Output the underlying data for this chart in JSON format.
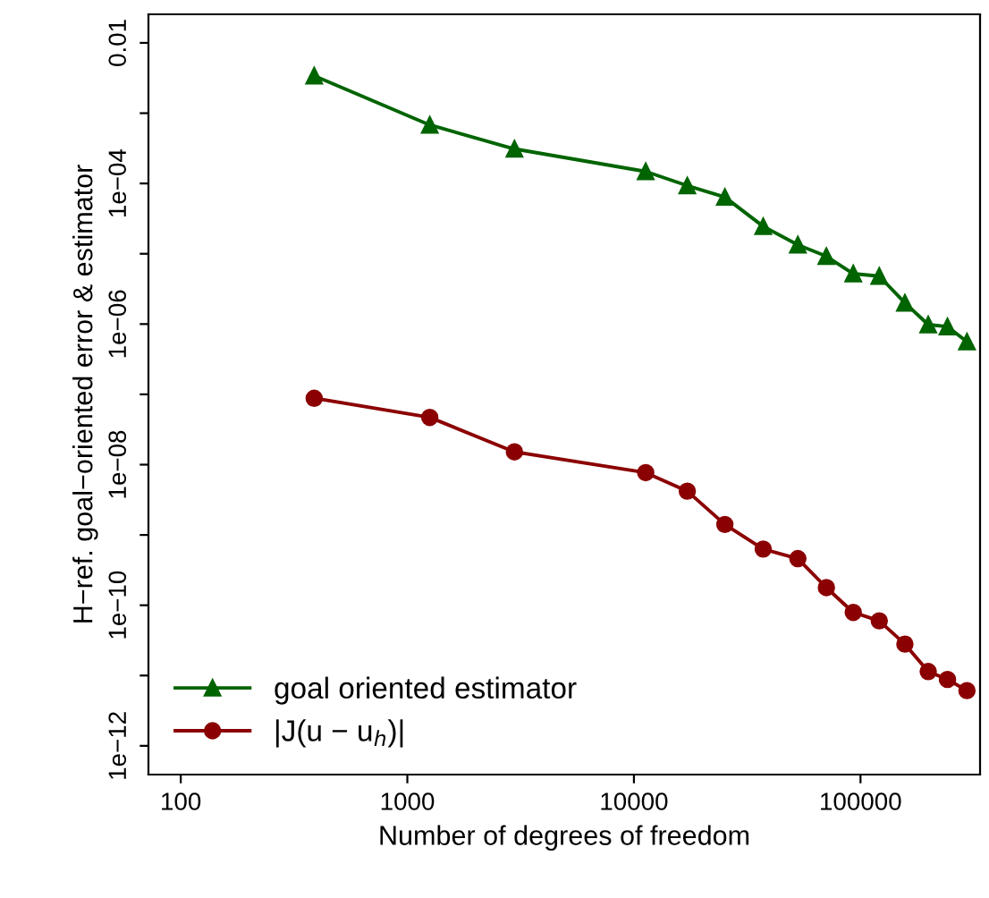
{
  "chart_data": {
    "type": "line",
    "xlabel": "Number of degrees of freedom",
    "ylabel": "H−ref. goal−oriented error & estimator",
    "log": "xy",
    "xlim": [
      72,
      337000
    ],
    "ylim": [
      3.9e-13,
      0.0255
    ],
    "xticks": [
      100,
      1000,
      10000,
      100000
    ],
    "yticks": [
      {
        "value": 1e-12,
        "label": "1e−12"
      },
      {
        "value": 1e-11,
        "label": null
      },
      {
        "value": 1e-10,
        "label": "1e−10"
      },
      {
        "value": 1e-09,
        "label": null
      },
      {
        "value": 1e-08,
        "label": "1e−08"
      },
      {
        "value": 1e-07,
        "label": null
      },
      {
        "value": 1e-06,
        "label": "1e−06"
      },
      {
        "value": 1e-05,
        "label": null
      },
      {
        "value": 0.0001,
        "label": "1e−04"
      },
      {
        "value": 0.001,
        "label": null
      },
      {
        "value": 0.01,
        "label": "0.01"
      }
    ],
    "x": [
      388,
      1256,
      2970,
      11270,
      17200,
      25200,
      37200,
      52900,
      70700,
      92900,
      121000,
      157000,
      199000,
      242000,
      295000
    ],
    "series": [
      {
        "name": "goal oriented estimator",
        "color": "#006400",
        "marker": "triangle",
        "values": [
          0.0034,
          0.00068,
          0.00031,
          0.000148,
          9.3e-05,
          6.4e-05,
          2.45e-05,
          1.34e-05,
          9.2e-06,
          5.2e-06,
          4.8e-06,
          2e-06,
          9.8e-07,
          9.2e-07,
          5.6e-07
        ]
      },
      {
        "name": "|J(u − u$_{h}$)|",
        "color": "#8b0000",
        "marker": "circle",
        "values": [
          8.8e-08,
          4.7e-08,
          1.52e-08,
          7.7e-09,
          4.2e-09,
          1.41e-09,
          6.3e-10,
          4.6e-10,
          1.78e-10,
          7.9e-11,
          6e-11,
          2.8e-11,
          1.14e-11,
          8.8e-12,
          6.1e-12
        ]
      }
    ],
    "legend": "bottom left",
    "grid": false,
    "line_style": "solid"
  }
}
